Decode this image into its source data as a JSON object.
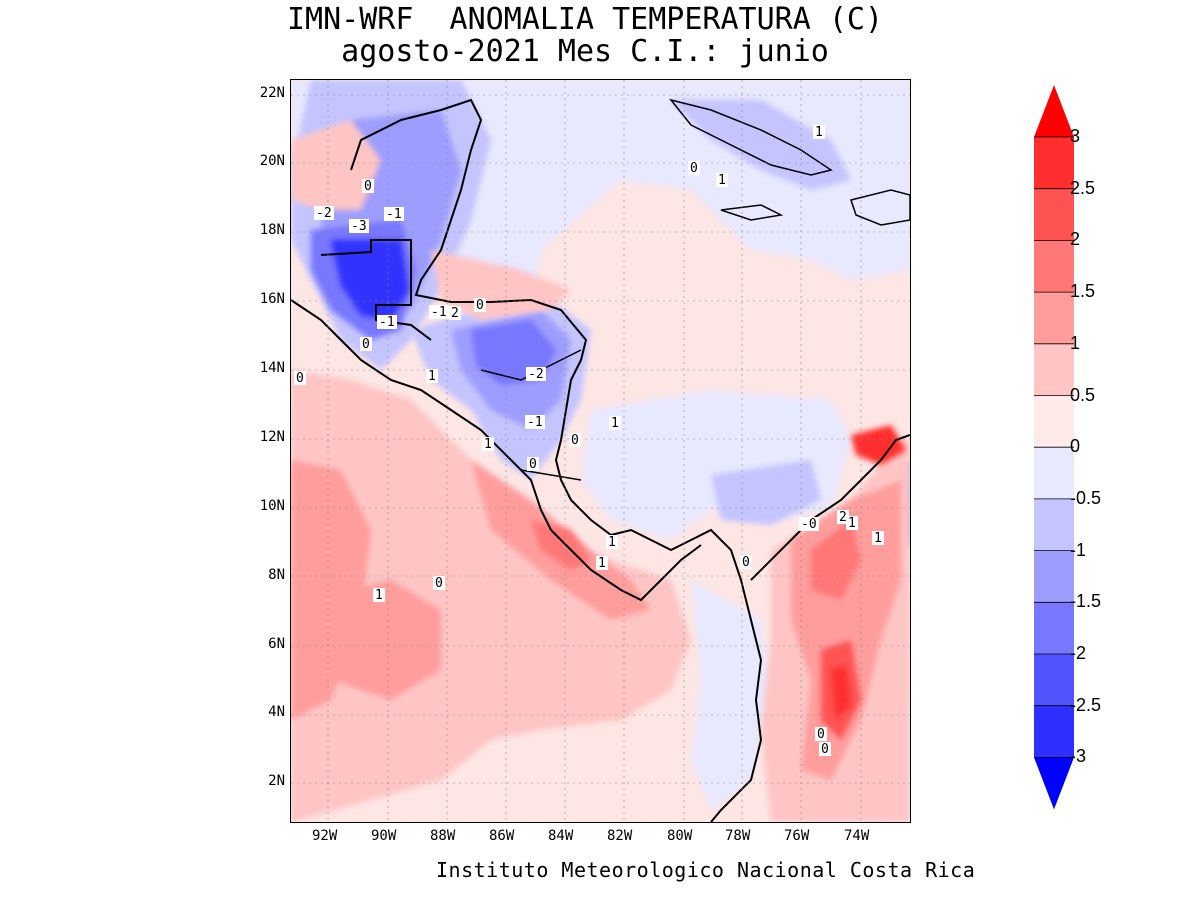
{
  "title": {
    "line1": "IMN-WRF  ANOMALIA TEMPERATURA (C)",
    "line2": "agosto-2021 Mes C.I.: junio"
  },
  "credit": "Instituto Meteorologico Nacional Costa Rica",
  "axes": {
    "lat_labels": [
      "22N",
      "20N",
      "18N",
      "16N",
      "14N",
      "12N",
      "10N",
      "8N",
      "6N",
      "4N",
      "2N"
    ],
    "lon_labels": [
      "92W",
      "90W",
      "88W",
      "86W",
      "84W",
      "82W",
      "80W",
      "78W",
      "76W",
      "74W"
    ]
  },
  "colorbar": {
    "labels": [
      "3",
      "2.5",
      "2",
      "1.5",
      "1",
      "0.5",
      "0",
      "-0.5",
      "-1",
      "-1.5",
      "-2",
      "-2.5",
      "-3"
    ],
    "colors": [
      "#ff0000",
      "#ff2f2f",
      "#ff5252",
      "#ff7777",
      "#ff9d9d",
      "#ffc5c5",
      "#ffeaea",
      "#e8e8ff",
      "#c4c4ff",
      "#9d9dff",
      "#7777ff",
      "#5252ff",
      "#2f2fff",
      "#0000ff"
    ]
  },
  "map_data": {
    "contour_labels": [
      "-2",
      "-3",
      "-1",
      "0",
      "-1",
      "-1",
      "2",
      "0",
      "-2",
      "1",
      "-1",
      "0",
      "1",
      "0",
      "0",
      "1",
      "1",
      "1",
      "1",
      "0",
      "-0",
      "0",
      "1",
      "1",
      "2",
      "1",
      "1",
      "0",
      "0",
      "0",
      "0"
    ],
    "region": "Central America and Caribbean, 1N-22N, 93W-73W"
  }
}
